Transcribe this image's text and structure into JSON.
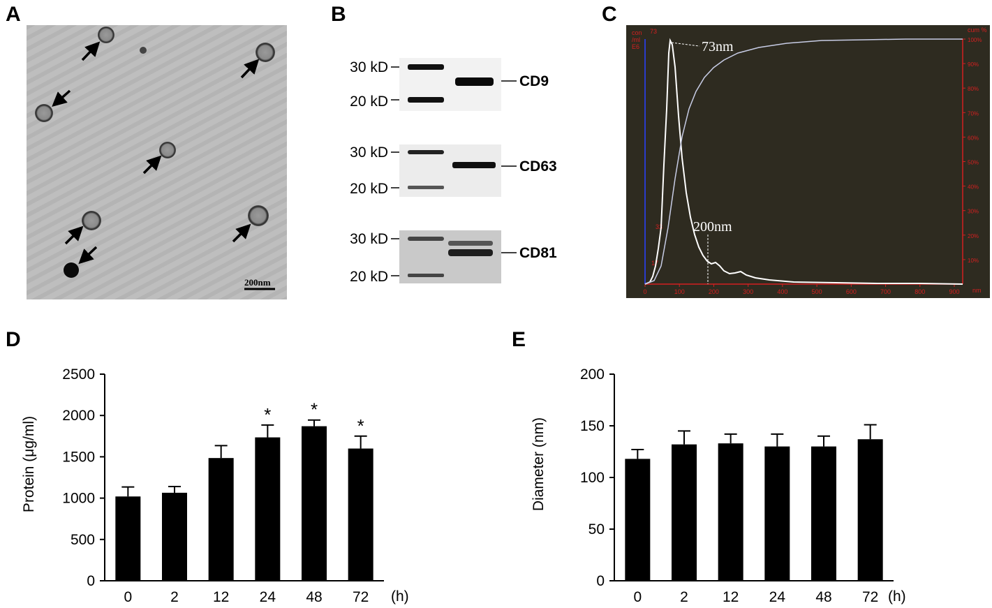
{
  "panels": {
    "a": {
      "letter": "A",
      "scale_bar": "200nm"
    },
    "b": {
      "letter": "B",
      "blots": [
        {
          "name": "CD9",
          "marker_top": "30 kD",
          "marker_bottom": "20 kD"
        },
        {
          "name": "CD63",
          "marker_top": "30 kD",
          "marker_bottom": "20 kD"
        },
        {
          "name": "CD81",
          "marker_top": "30 kD",
          "marker_bottom": "20 kD"
        }
      ]
    },
    "c": {
      "letter": "C",
      "left_axis_label": [
        "con",
        "/ml",
        "E6"
      ],
      "right_axis_label": "cum %",
      "peak_tick_label": "73",
      "peak_annotation": "73nm",
      "second_annotation": "200nm",
      "curve_labels": [
        "33",
        "17"
      ],
      "x_ticks": [
        "0",
        "100",
        "200",
        "300",
        "400",
        "500",
        "600",
        "700",
        "800",
        "900"
      ],
      "x_unit": "nm",
      "right_ticks": [
        "100%",
        "90%",
        "80%",
        "70%",
        "60%",
        "50%",
        "40%",
        "30%",
        "20%",
        "10%"
      ],
      "colors": {
        "background": "#2e2b20",
        "axis_red": "#d42020",
        "axis_blue": "#2a3ccc",
        "curve": "#ffffff"
      }
    },
    "d": {
      "letter": "D"
    },
    "e": {
      "letter": "E"
    }
  },
  "chart_data": [
    {
      "type": "bar",
      "title": "",
      "categories": [
        "0",
        "2",
        "12",
        "24",
        "48",
        "72"
      ],
      "values": [
        1020,
        1065,
        1485,
        1735,
        1870,
        1600
      ],
      "errors": [
        115,
        75,
        150,
        150,
        75,
        150
      ],
      "significance": [
        "",
        "",
        "",
        "*",
        "*",
        "*"
      ],
      "xlabel": "",
      "x_unit": "(h)",
      "ylabel": "Protein (μg/ml)",
      "yticks": [
        "0",
        "500",
        "1000",
        "1500",
        "2000",
        "2500"
      ],
      "ylim": [
        0,
        2500
      ],
      "grid": false,
      "color": "#000000"
    },
    {
      "type": "bar",
      "title": "",
      "categories": [
        "0",
        "2",
        "12",
        "24",
        "48",
        "72"
      ],
      "values": [
        118,
        132,
        133,
        130,
        130,
        137
      ],
      "errors": [
        9,
        13,
        9,
        12,
        10,
        14
      ],
      "significance": [
        "",
        "",
        "",
        "",
        "",
        ""
      ],
      "xlabel": "",
      "x_unit": "(h)",
      "ylabel": "Diameter (nm)",
      "yticks": [
        "0",
        "50",
        "100",
        "150",
        "200"
      ],
      "ylim": [
        0,
        200
      ],
      "grid": false,
      "color": "#000000"
    }
  ]
}
